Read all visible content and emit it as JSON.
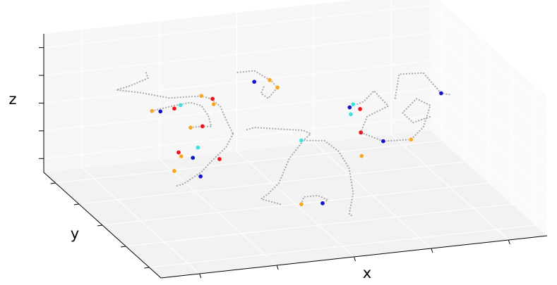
{
  "chart_data": {
    "type": "scatter3d",
    "xlabel": "x",
    "ylabel": "y",
    "zlabel": "z",
    "xlim": [
      0,
      10
    ],
    "ylim": [
      0,
      10
    ],
    "zlim": [
      0,
      10
    ],
    "xticks": [
      1,
      3,
      5,
      7,
      9
    ],
    "yticks": [
      1,
      3,
      5,
      7,
      9
    ],
    "zticks": [
      1,
      3,
      5,
      7,
      9
    ],
    "grid": true,
    "trajectory_color": "#aaaaaa",
    "trajectories": [
      {
        "x": [
          0.83,
          0.88,
          0.43,
          0.06,
          0.7,
          1.43,
          2.26,
          2.52,
          2.75,
          2.9,
          3.08
        ],
        "y": [
          4,
          4,
          4,
          4,
          4,
          4,
          4,
          4,
          4,
          4,
          4
        ],
        "z": [
          11.5,
          11.1,
          10.7,
          10.5,
          10.1,
          9.5,
          9.4,
          9.1,
          8.5,
          7.5,
          6.4
        ]
      },
      {
        "x": [
          0.98,
          1.52,
          1.98,
          2.26,
          2.44,
          2.52,
          2.29,
          1.98
        ],
        "y": [
          4,
          4,
          4,
          4,
          4,
          4,
          4,
          4
        ],
        "z": [
          8.7,
          8.9,
          9.0,
          8.7,
          7.9,
          7.1,
          7.2,
          7.2
        ]
      },
      {
        "x": [
          3.08,
          2.9,
          2.52,
          2.26,
          1.8,
          1.62
        ],
        "y": [
          4,
          4,
          4,
          4,
          4,
          4
        ],
        "z": [
          6.4,
          5.5,
          4.6,
          3.9,
          3.2,
          3.1
        ]
      },
      {
        "x": [
          3.44,
          3.63,
          4.27,
          4.91,
          5.09,
          4.91,
          4.54,
          4.27,
          3.99,
          3.81,
          4.36
        ],
        "y": [
          4,
          4,
          4,
          4,
          4,
          4,
          4,
          4,
          4,
          4,
          4
        ],
        "z": [
          6.6,
          6.7,
          6.4,
          6.1,
          5.8,
          5.4,
          4.2,
          2.5,
          1.8,
          1.5,
          0.9
        ]
      },
      {
        "x": [
          4.85,
          5.45,
          5.82,
          6.09,
          6.19,
          6.09,
          6.19
        ],
        "y": [
          4,
          4,
          4,
          4,
          4,
          4,
          4
        ],
        "z": [
          5.4,
          5.2,
          4.3,
          3.0,
          1.2,
          -0.3,
          -0.5
        ]
      },
      {
        "x": [
          3.2,
          3.63,
          4.08,
          4.23,
          3.99,
          3.81,
          3.9
        ],
        "y": [
          4,
          4,
          4,
          4,
          4,
          4,
          4
        ],
        "z": [
          10.8,
          10.8,
          9.9,
          9.4,
          8.7,
          9.1,
          9.7
        ]
      },
      {
        "x": [
          6.09,
          6.46,
          6.73,
          7.1,
          6.55,
          6.39,
          6.97,
          7.69,
          8.01,
          8.19,
          7.83,
          7.47,
          7.74,
          8.19
        ],
        "y": [
          4,
          4,
          4,
          4,
          4,
          4,
          4,
          4,
          4,
          4,
          4,
          4,
          4,
          4
        ],
        "z": [
          7.4,
          7.7,
          8.4,
          7.2,
          6.6,
          5.5,
          4.7,
          4.6,
          5.4,
          6.9,
          7.5,
          6.6,
          5.8,
          6.1
        ]
      },
      {
        "x": [
          7.28,
          7.38,
          8.01,
          8.47,
          8.74
        ],
        "y": [
          4,
          4,
          4,
          4,
          4
        ],
        "z": [
          7.7,
          9.4,
          9.3,
          7.7,
          7.5
        ]
      },
      {
        "x": [
          4.85,
          4.91,
          5.27,
          5.54,
          5.4
        ],
        "y": [
          4,
          4,
          4,
          4,
          4
        ],
        "z": [
          0.8,
          1.3,
          1.3,
          0.9,
          0.7
        ]
      }
    ],
    "series": [
      {
        "color": "#f5a623",
        "x": [
          0.98,
          2.26,
          2.58,
          1.98,
          1.74,
          1.56,
          4.03,
          4.23,
          4.85,
          6.41,
          7.69
        ],
        "y": [
          4,
          4,
          4,
          4,
          4,
          4,
          4,
          4,
          4,
          4,
          4
        ],
        "z": [
          8.7,
          9.4,
          8.7,
          7.2,
          5.2,
          4.2,
          10.0,
          9.4,
          0.8,
          3.8,
          4.6
        ]
      },
      {
        "color": "#e8141c",
        "x": [
          1.56,
          2.55,
          2.29,
          1.67,
          2.73,
          6.37,
          6.39
        ],
        "y": [
          4,
          4,
          4,
          4,
          4,
          4,
          4
        ],
        "z": [
          8.7,
          9.1,
          7.2,
          5.5,
          4.7,
          7.2,
          5.5
        ]
      },
      {
        "color": "#1414c8",
        "x": [
          1.2,
          2.04,
          2.24,
          3.63,
          6.1,
          5.4,
          6.97,
          8.47
        ],
        "y": [
          4,
          4,
          4,
          4,
          4,
          4,
          4,
          4
        ],
        "z": [
          8.6,
          5.0,
          3.6,
          10.0,
          7.4,
          0.7,
          4.7,
          7.7
        ]
      },
      {
        "color": "#3fe0e0",
        "x": [
          1.72,
          2.17,
          4.85,
          6.19,
          6.13
        ],
        "y": [
          4,
          4,
          4,
          4,
          4
        ],
        "z": [
          8.9,
          5.7,
          5.4,
          7.6,
          6.9
        ]
      }
    ]
  }
}
